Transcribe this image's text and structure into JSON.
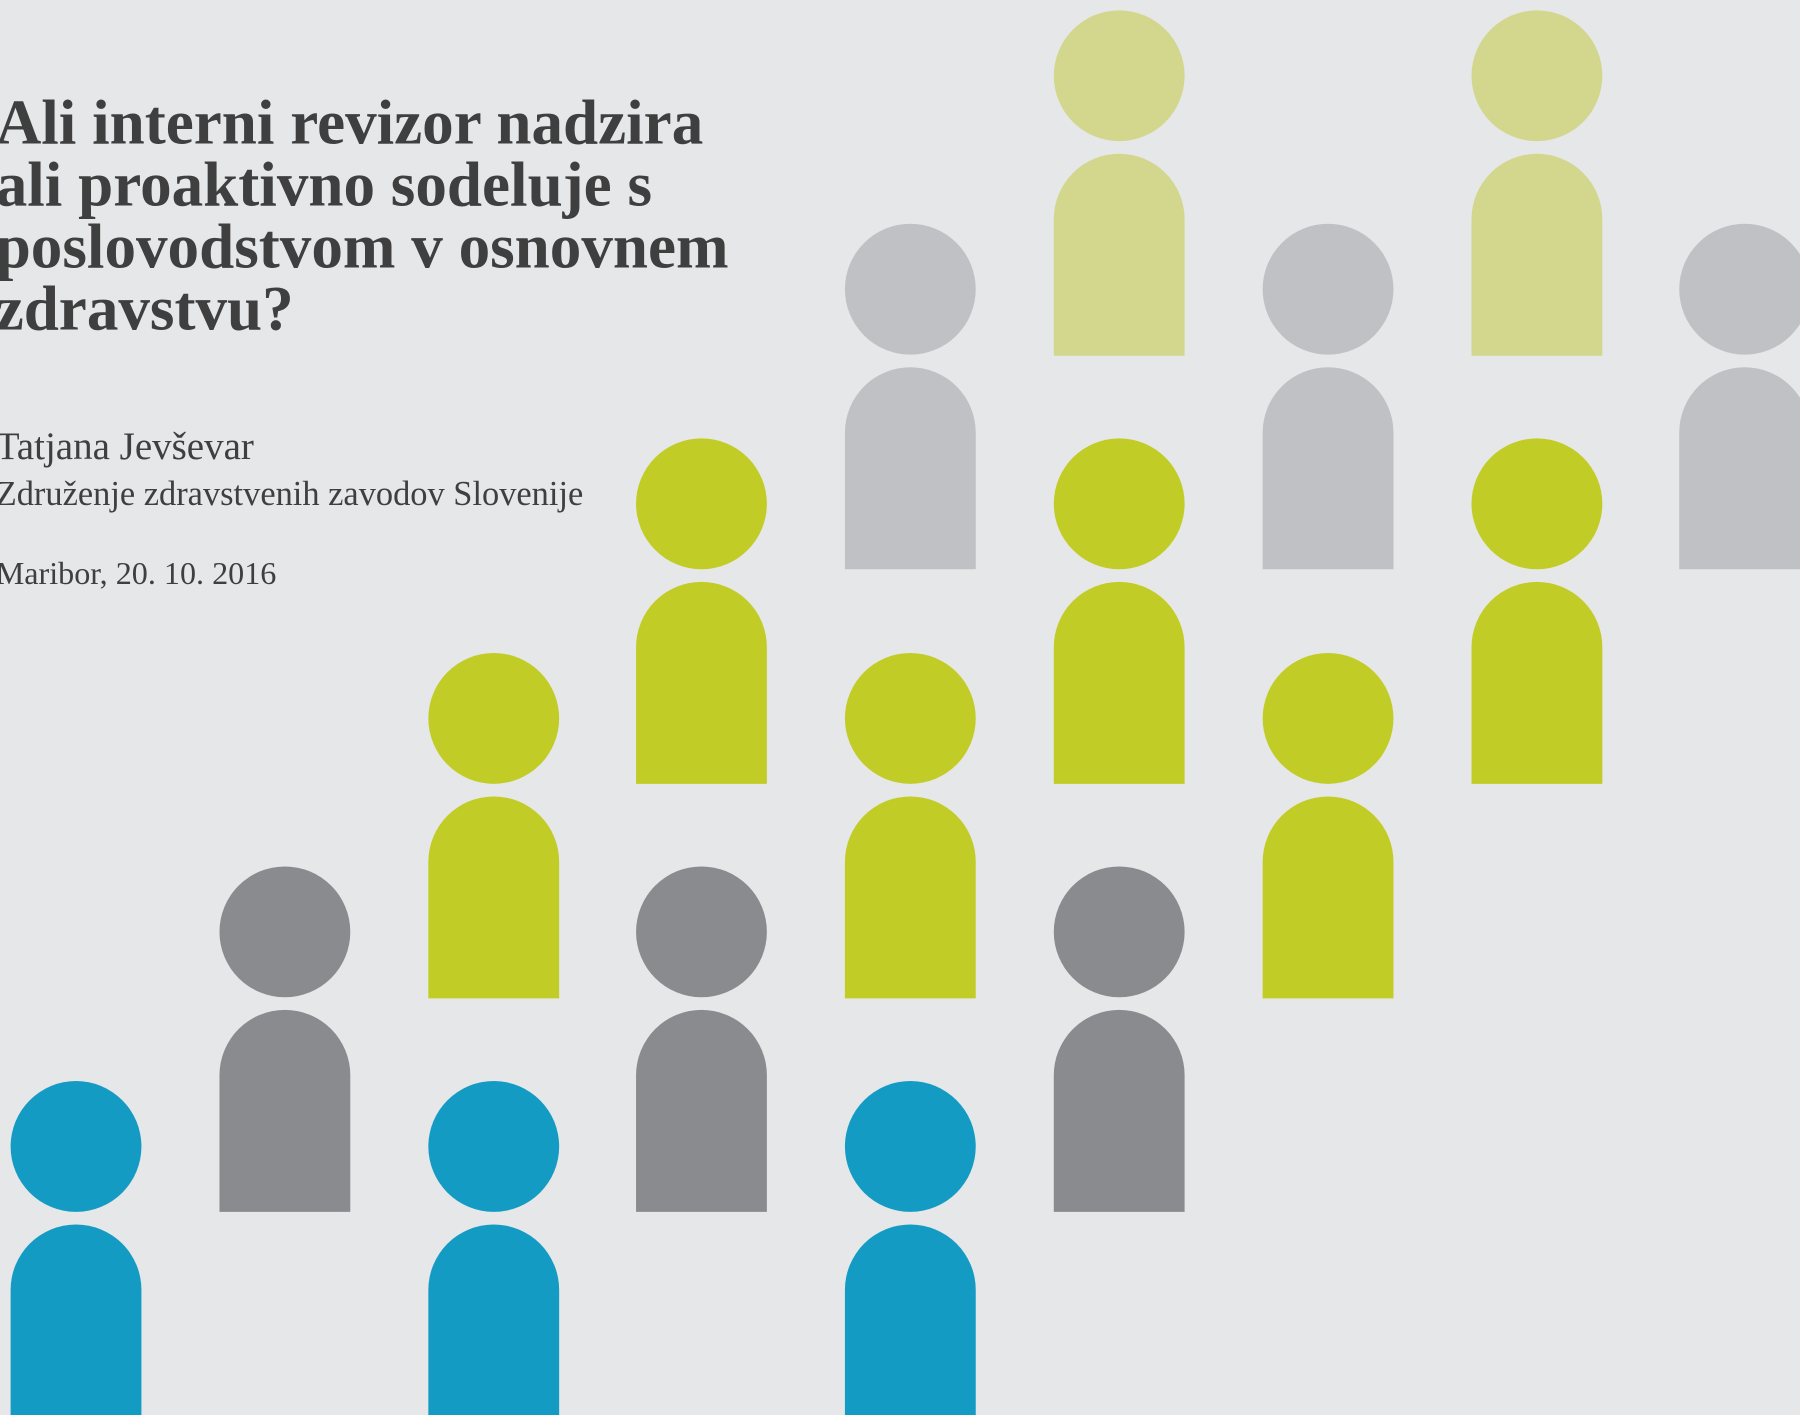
{
  "slide": {
    "title_lines": [
      "Ali interni revizor nadzira",
      "ali proaktivno sodeluje s",
      "poslovodstvom v osnovnem",
      "zdravstvu?"
    ],
    "author": "Tatjana Jevševar",
    "organization": "Združenje zdravstvenih zavodov Slovenije",
    "place_date": "Maribor, 20. 10. 2016"
  }
}
